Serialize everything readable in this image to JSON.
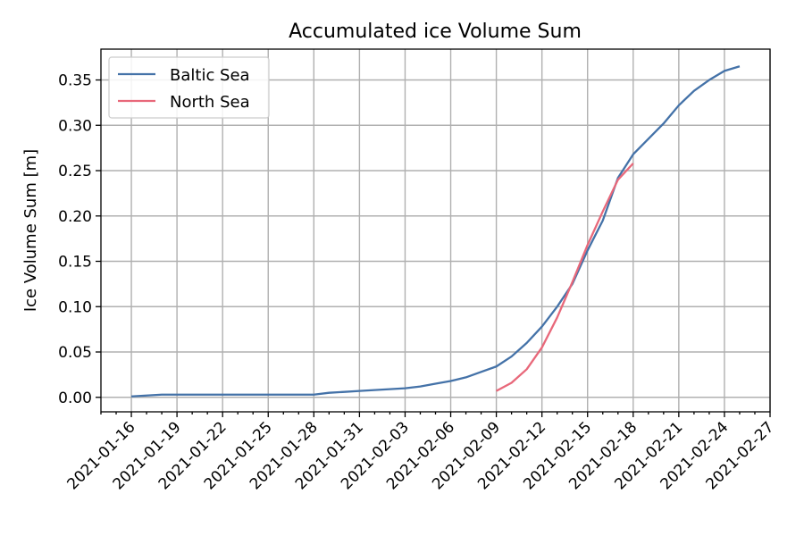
{
  "chart_data": {
    "type": "line",
    "title": "Accumulated ice Volume Sum",
    "xlabel": "",
    "ylabel": "Ice Volume Sum [m]",
    "x_date_start": "2021-01-16",
    "xlim_days": [
      -2,
      42
    ],
    "ylim": [
      -0.016,
      0.384
    ],
    "yticks": [
      0.0,
      0.05,
      0.1,
      0.15,
      0.2,
      0.25,
      0.3,
      0.35
    ],
    "ytick_labels": [
      "0.00",
      "0.05",
      "0.10",
      "0.15",
      "0.20",
      "0.25",
      "0.30",
      "0.35"
    ],
    "xtick_days": [
      0,
      3,
      6,
      9,
      12,
      15,
      18,
      21,
      24,
      27,
      30,
      33,
      36,
      39,
      42
    ],
    "xtick_labels": [
      "2021-01-16",
      "2021-01-19",
      "2021-01-22",
      "2021-01-25",
      "2021-01-28",
      "2021-01-31",
      "2021-02-03",
      "2021-02-06",
      "2021-02-09",
      "2021-02-12",
      "2021-02-15",
      "2021-02-18",
      "2021-02-21",
      "2021-02-24",
      "2021-02-27"
    ],
    "grid": true,
    "legend_position": "top-left",
    "series": [
      {
        "name": "Baltic Sea",
        "color": "#4472a8",
        "x_days": [
          0,
          1,
          2,
          3,
          4,
          5,
          6,
          7,
          8,
          9,
          10,
          11,
          12,
          13,
          14,
          15,
          16,
          17,
          18,
          19,
          20,
          21,
          22,
          23,
          24,
          25,
          26,
          27,
          28,
          29,
          30,
          31,
          32,
          33,
          34,
          35,
          36,
          37,
          38,
          39,
          40
        ],
        "values": [
          0.001,
          0.002,
          0.003,
          0.003,
          0.003,
          0.003,
          0.003,
          0.003,
          0.003,
          0.003,
          0.003,
          0.003,
          0.003,
          0.005,
          0.006,
          0.007,
          0.008,
          0.009,
          0.01,
          0.012,
          0.015,
          0.018,
          0.022,
          0.028,
          0.034,
          0.045,
          0.06,
          0.078,
          0.1,
          0.125,
          0.162,
          0.195,
          0.242,
          0.268,
          0.285,
          0.302,
          0.322,
          0.338,
          0.35,
          0.36,
          0.365
        ]
      },
      {
        "name": "North Sea",
        "color": "#e8687a",
        "x_days": [
          24,
          25,
          26,
          27,
          28,
          29,
          30,
          31,
          32,
          33
        ],
        "values": [
          0.007,
          0.016,
          0.031,
          0.055,
          0.088,
          0.127,
          0.168,
          0.205,
          0.24,
          0.258
        ]
      }
    ]
  }
}
